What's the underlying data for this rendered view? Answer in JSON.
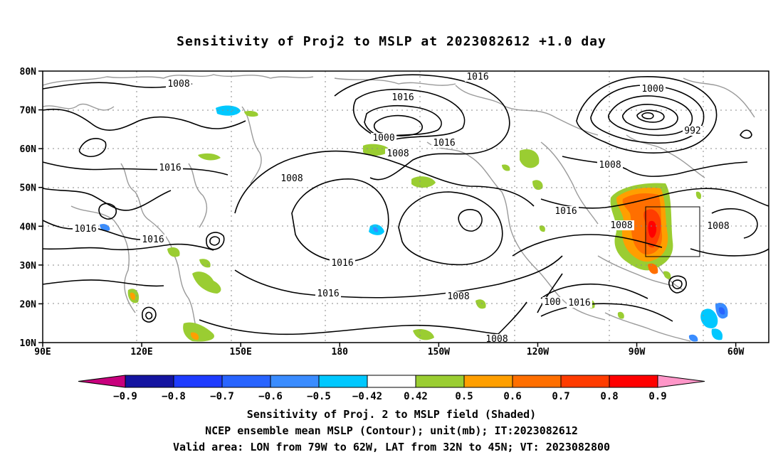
{
  "title": "Sensitivity of Proj2 to MSLP at 2023082612 +1.0 day",
  "map": {
    "projection": "equirectangular",
    "lon_range": [
      90,
      310
    ],
    "lat_range": [
      10,
      80
    ],
    "lat_ticks": [
      "80N",
      "70N",
      "60N",
      "50N",
      "40N",
      "30N",
      "20N",
      "10N"
    ],
    "lon_ticks": [
      "90E",
      "120E",
      "150E",
      "180",
      "150W",
      "120W",
      "90W",
      "60W"
    ],
    "contour_labels": [
      "1008",
      "1016",
      "1008",
      "1000",
      "1008",
      "1016",
      "1016",
      "1000",
      "992",
      "1008",
      "1016",
      "1008",
      "1008",
      "1016",
      "1016",
      "1016",
      "1016",
      "1016",
      "1008",
      "100",
      "1016",
      "1008"
    ],
    "valid_area_box": {
      "lon": [
        -79,
        -62
      ],
      "lat": [
        32,
        45
      ]
    },
    "colors": {
      "contour": "#000000",
      "coast": "#9a9a9a",
      "grid": "#8a8a8a"
    }
  },
  "colorbar": {
    "labels": [
      "−0.9",
      "−0.8",
      "−0.7",
      "−0.6",
      "−0.5",
      "−0.42",
      "0.42",
      "0.5",
      "0.6",
      "0.7",
      "0.8",
      "0.9"
    ],
    "colors": [
      "#c8007d",
      "#1414a0",
      "#1e3cff",
      "#2864ff",
      "#3a8cff",
      "#00c8ff",
      "#ffffff",
      "#9acd32",
      "#ff9f00",
      "#ff6f00",
      "#ff3c00",
      "#ff0000",
      "#ff96c8"
    ]
  },
  "captions": [
    "Sensitivity of Proj. 2 to MSLP field (Shaded)",
    "NCEP ensemble mean MSLP (Contour); unit(mb); IT:2023082612",
    "Valid area: LON from 79W to 62W, LAT from 32N to 45N; VT: 2023082800"
  ]
}
